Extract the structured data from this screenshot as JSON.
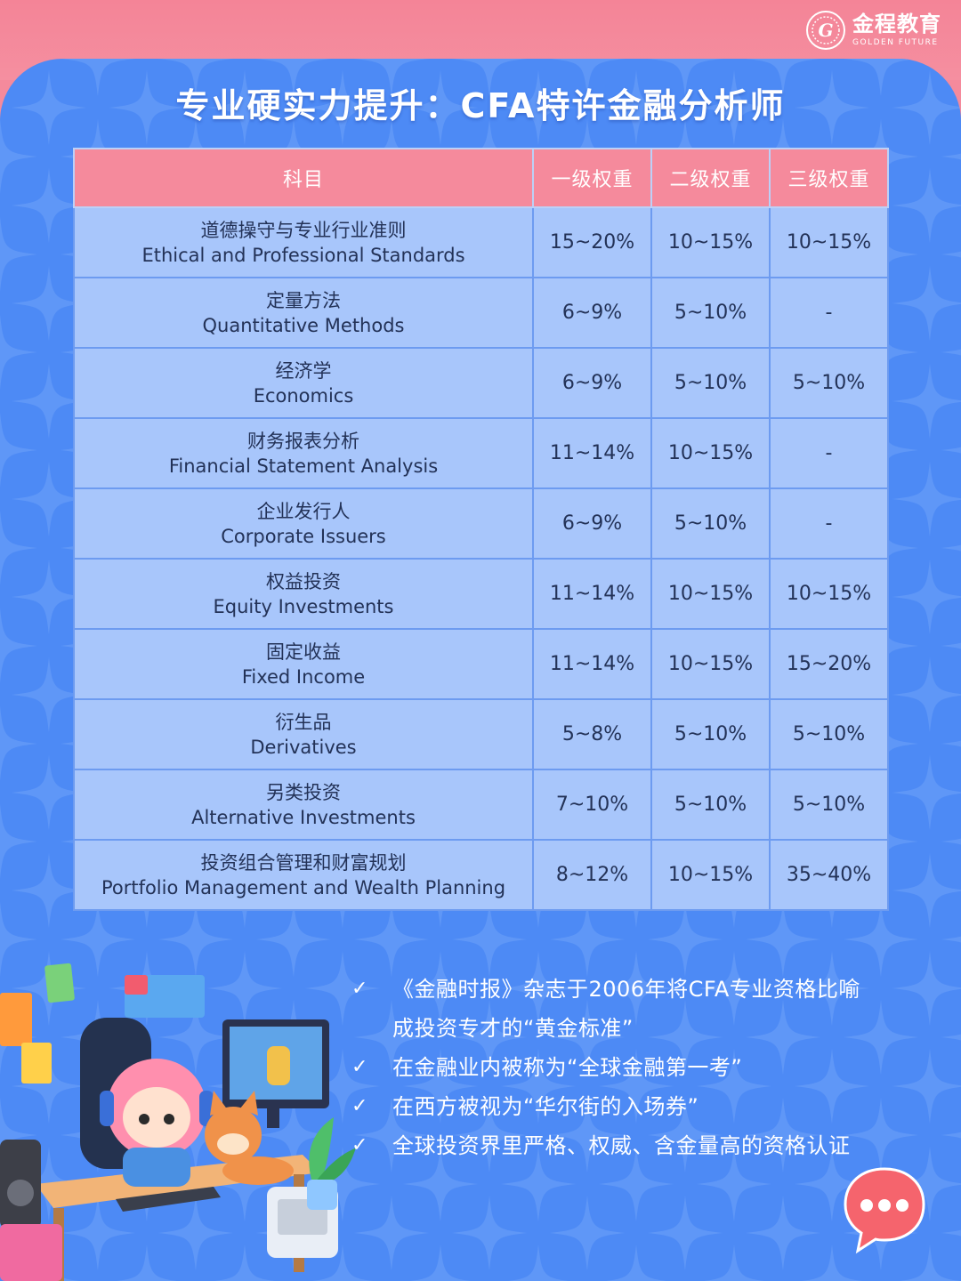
{
  "brand": {
    "name_cn": "金程教育",
    "name_en": "GOLDEN FUTURE"
  },
  "title": "专业硬实力提升：CFA特许金融分析师",
  "table": {
    "headers": [
      "科目",
      "一级权重",
      "二级权重",
      "三级权重"
    ],
    "rows": [
      {
        "subject_cn": "道德操守与专业行业准则",
        "subject_en": "Ethical and Professional Standards",
        "l1": "15~20%",
        "l2": "10~15%",
        "l3": "10~15%"
      },
      {
        "subject_cn": "定量方法",
        "subject_en": "Quantitative Methods",
        "l1": "6~9%",
        "l2": "5~10%",
        "l3": "-"
      },
      {
        "subject_cn": "经济学",
        "subject_en": "Economics",
        "l1": "6~9%",
        "l2": "5~10%",
        "l3": "5~10%"
      },
      {
        "subject_cn": "财务报表分析",
        "subject_en": "Financial Statement Analysis",
        "l1": "11~14%",
        "l2": "10~15%",
        "l3": "-"
      },
      {
        "subject_cn": "企业发行人",
        "subject_en": "Corporate Issuers",
        "l1": "6~9%",
        "l2": "5~10%",
        "l3": "-"
      },
      {
        "subject_cn": "权益投资",
        "subject_en": "Equity Investments",
        "l1": "11~14%",
        "l2": "10~15%",
        "l3": "10~15%"
      },
      {
        "subject_cn": "固定收益",
        "subject_en": "Fixed Income",
        "l1": "11~14%",
        "l2": "10~15%",
        "l3": "15~20%"
      },
      {
        "subject_cn": "衍生品",
        "subject_en": "Derivatives",
        "l1": "5~8%",
        "l2": "5~10%",
        "l3": "5~10%"
      },
      {
        "subject_cn": "另类投资",
        "subject_en": "Alternative Investments",
        "l1": "7~10%",
        "l2": "5~10%",
        "l3": "5~10%"
      },
      {
        "subject_cn": "投资组合管理和财富规划",
        "subject_en": "Portfolio Management and Wealth Planning",
        "l1": "8~12%",
        "l2": "10~15%",
        "l3": "35~40%"
      }
    ]
  },
  "bullets": [
    {
      "mark": "✓",
      "lines": [
        "《金融时报》杂志于2006年将CFA专业资格比喻",
        "成投资专才的“黄金标准”"
      ]
    },
    {
      "mark": "✓",
      "lines": [
        "在金融业内被称为“全球金融第一考”"
      ]
    },
    {
      "mark": "✓",
      "lines": [
        "在西方被视为“华尔街的入场券”"
      ]
    },
    {
      "mark": "✓",
      "lines": [
        "全球投资界里严格、权威、含金量高的资格认证"
      ]
    }
  ],
  "icons": {
    "logo": "golden-future-logo",
    "check": "checkmark-icon",
    "chat": "chat-bubble-icon",
    "illustration": "gamer-girl-cat-desk-illustration"
  },
  "colors": {
    "pink": "#f58a9c",
    "blue_bg": "#4d8af5",
    "cell_bg": "#a8c6fb",
    "text_dark": "#233257"
  }
}
